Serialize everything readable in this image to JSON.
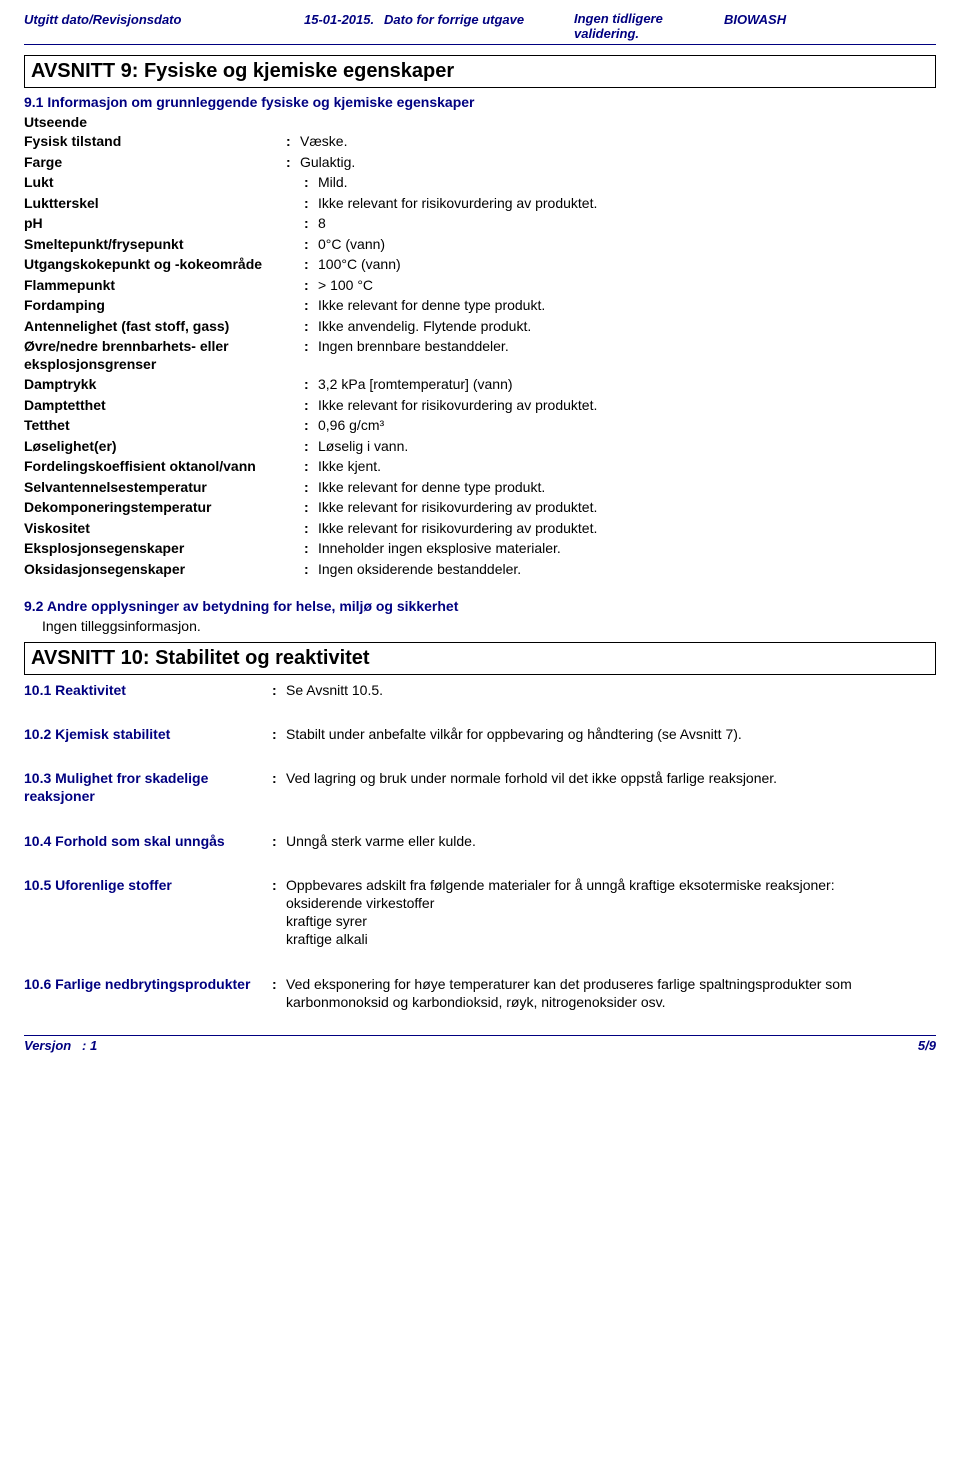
{
  "header": {
    "label1": "Utgitt dato/Revisjonsdato",
    "date": "15-01-2015.",
    "label2": "Dato for forrige utgave",
    "previous": "Ingen tidligere validering.",
    "product": "BIOWASH"
  },
  "section9": {
    "title": "AVSNITT 9: Fysiske og kjemiske egenskaper",
    "sub91": "9.1 Informasjon om grunnleggende fysiske og kjemiske egenskaper",
    "utseende": "Utseende",
    "rows_top": [
      {
        "label": "Fysisk tilstand",
        "value": "Væske."
      },
      {
        "label": "Farge",
        "value": "Gulaktig."
      }
    ],
    "rows": [
      {
        "label": "Lukt",
        "value": "Mild."
      },
      {
        "label": "Luktterskel",
        "value": "Ikke relevant for risikovurdering av produktet."
      },
      {
        "label": "pH",
        "value": "8"
      },
      {
        "label": "Smeltepunkt/frysepunkt",
        "value": "0°C (vann)"
      },
      {
        "label": "Utgangskokepunkt og -kokeområde",
        "value": "100°C (vann)"
      },
      {
        "label": "Flammepunkt",
        "value": "> 100 °C"
      },
      {
        "label": "Fordamping",
        "value": "Ikke relevant for denne type produkt."
      },
      {
        "label": "Antennelighet (fast stoff, gass)",
        "value": "Ikke anvendelig. Flytende produkt."
      },
      {
        "label": "Øvre/nedre brennbarhets- eller eksplosjonsgrenser",
        "value": "Ingen brennbare bestanddeler."
      },
      {
        "label": "Damptrykk",
        "value": "3,2 kPa [romtemperatur] (vann)"
      },
      {
        "label": "Damptetthet",
        "value": "Ikke relevant for risikovurdering av produktet."
      },
      {
        "label": "Tetthet",
        "value": "0,96 g/cm³"
      },
      {
        "label": "Løselighet(er)",
        "value": "Løselig i vann."
      },
      {
        "label": "Fordelingskoeffisient oktanol/vann",
        "value": "Ikke kjent."
      },
      {
        "label": "Selvantennelsestemperatur",
        "value": "Ikke relevant for denne type produkt."
      },
      {
        "label": "Dekomponeringstemperatur",
        "value": "Ikke relevant for risikovurdering av produktet."
      },
      {
        "label": "Viskositet",
        "value": "Ikke relevant for risikovurdering av produktet."
      },
      {
        "label": "Eksplosjonsegenskaper",
        "value": "Inneholder ingen eksplosive materialer."
      },
      {
        "label": "Oksidasjonsegenskaper",
        "value": "Ingen oksiderende bestanddeler."
      }
    ],
    "sub92": "9.2 Andre opplysninger av betydning for helse, miljø og sikkerhet",
    "noextra": "Ingen tilleggsinformasjon."
  },
  "section10": {
    "title": "AVSNITT 10: Stabilitet og reaktivitet",
    "rows": [
      {
        "label": "10.1 Reaktivitet",
        "value": "Se Avsnitt 10.5."
      },
      {
        "label": "10.2 Kjemisk stabilitet",
        "value": "Stabilt under anbefalte vilkår for oppbevaring og håndtering (se Avsnitt 7)."
      },
      {
        "label": "10.3 Mulighet fror skadelige reaksjoner",
        "value": "Ved lagring og bruk under normale forhold vil det ikke oppstå farlige reaksjoner."
      },
      {
        "label": "10.4 Forhold som skal unngås",
        "value": "Unngå sterk varme eller kulde."
      },
      {
        "label": "10.5 Uforenlige stoffer",
        "value": "Oppbevares adskilt fra følgende materialer for å unngå kraftige eksotermiske reaksjoner:\noksiderende virkestoffer\nkraftige syrer\nkraftige alkali"
      },
      {
        "label": "10.6 Farlige nedbrytingsprodukter",
        "value": "Ved eksponering for høye temperaturer kan det produseres farlige spaltningsprodukter som karbonmonoksid og karbondioksid, røyk, nitrogenoksider osv."
      }
    ]
  },
  "footer": {
    "version_label": "Versjon",
    "version_value": "1",
    "page": "5/9"
  },
  "colors": {
    "accent": "#000080",
    "text": "#000000",
    "background": "#ffffff"
  }
}
